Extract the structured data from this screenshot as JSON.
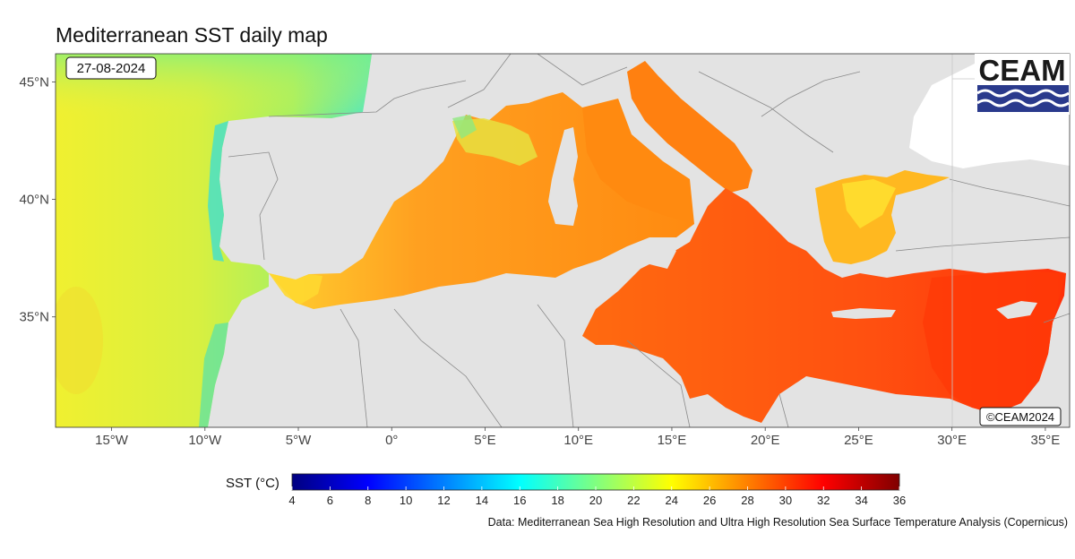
{
  "title": "Mediterranean SST daily map",
  "date_label": "27-08-2024",
  "copyright_label": "©CEAM2024",
  "logo_text": "CEAM",
  "source_note": "Data: Mediterranean Sea High Resolution and Ultra High Resolution Sea Surface Temperature Analysis (Copernicus)",
  "colorbar": {
    "label": "SST (°C)",
    "min": 4,
    "max": 36,
    "ticks": [
      4,
      6,
      8,
      10,
      12,
      14,
      16,
      18,
      20,
      22,
      24,
      26,
      28,
      30,
      32,
      34,
      36
    ],
    "colors": [
      "#000080",
      "#0000ff",
      "#0080ff",
      "#00ffff",
      "#80ff80",
      "#ffff00",
      "#ff8000",
      "#ff0000",
      "#800000"
    ]
  },
  "lon_axis": {
    "ticks": [
      -15,
      -10,
      -5,
      0,
      5,
      10,
      15,
      20,
      25,
      30,
      35
    ],
    "labels": [
      "15°W",
      "10°W",
      "5°W",
      "0°",
      "5°E",
      "10°E",
      "15°E",
      "20°E",
      "25°E",
      "30°E",
      "35°E"
    ]
  },
  "lat_axis": {
    "ticks": [
      45,
      40,
      35
    ],
    "labels": [
      "45°N",
      "40°N",
      "35°N"
    ]
  },
  "map_colors": {
    "land": "#e3e3e3",
    "atlantic_yellow": "#f0f030",
    "atlantic_green": "#a8f060",
    "atlantic_cyan": "#40e8c0",
    "med_orange": "#ff8c10",
    "med_redorange": "#ff5a10",
    "med_red": "#ff3008",
    "aegean_yellow": "#ffd020"
  }
}
